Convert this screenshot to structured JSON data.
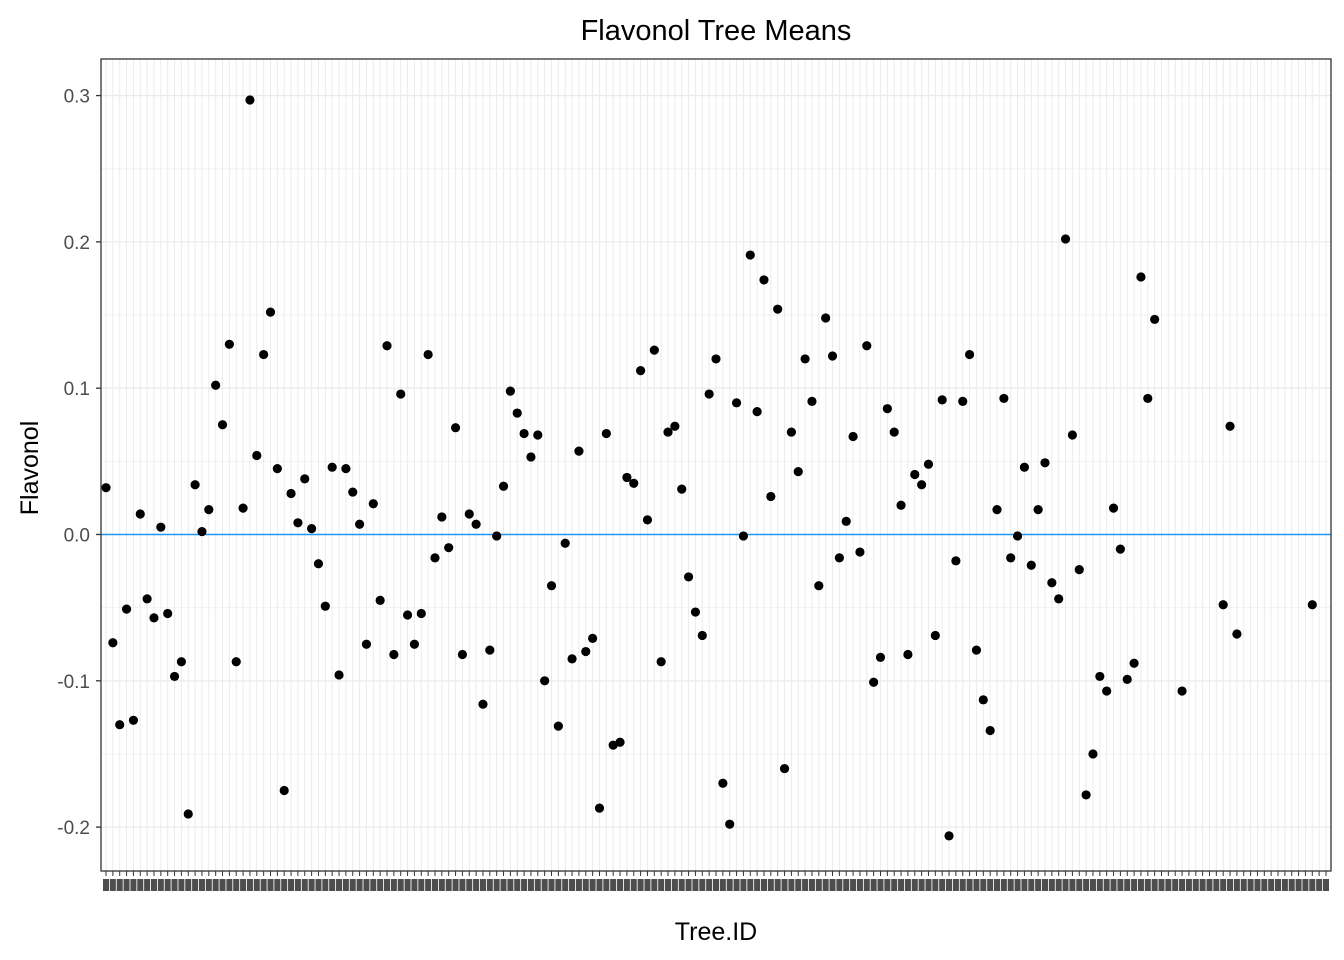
{
  "chart_data": {
    "type": "scatter",
    "title": "Flavonol Tree Means",
    "xlabel": "Tree.ID",
    "ylabel": "Flavonol",
    "x_axis": "categorical",
    "x_tick_count": 179,
    "ylim": [
      -0.23,
      0.325
    ],
    "y_ticks": [
      -0.2,
      -0.1,
      0.0,
      0.1,
      0.2,
      0.3
    ],
    "y_tick_labels": [
      "-0.2",
      "-0.1",
      "0.0",
      "0.1",
      "0.2",
      "0.3"
    ],
    "reference_line": {
      "y": 0,
      "color": "#2196F3"
    },
    "grid": true,
    "point_color": "#000000",
    "points": [
      [
        1,
        0.032
      ],
      [
        2,
        -0.074
      ],
      [
        3,
        -0.13
      ],
      [
        4,
        -0.051
      ],
      [
        5,
        -0.127
      ],
      [
        6,
        0.014
      ],
      [
        7,
        -0.044
      ],
      [
        8,
        -0.057
      ],
      [
        9,
        0.005
      ],
      [
        10,
        -0.054
      ],
      [
        11,
        -0.097
      ],
      [
        12,
        -0.087
      ],
      [
        13,
        -0.191
      ],
      [
        14,
        0.034
      ],
      [
        15,
        0.002
      ],
      [
        16,
        0.017
      ],
      [
        17,
        0.102
      ],
      [
        18,
        0.075
      ],
      [
        19,
        0.13
      ],
      [
        20,
        -0.087
      ],
      [
        21,
        0.018
      ],
      [
        22,
        0.297
      ],
      [
        23,
        0.054
      ],
      [
        24,
        0.123
      ],
      [
        25,
        0.152
      ],
      [
        26,
        0.045
      ],
      [
        27,
        -0.175
      ],
      [
        28,
        0.028
      ],
      [
        29,
        0.008
      ],
      [
        30,
        0.038
      ],
      [
        31,
        0.004
      ],
      [
        32,
        -0.02
      ],
      [
        33,
        -0.049
      ],
      [
        34,
        0.046
      ],
      [
        35,
        -0.096
      ],
      [
        36,
        0.045
      ],
      [
        37,
        0.029
      ],
      [
        38,
        0.007
      ],
      [
        39,
        -0.075
      ],
      [
        40,
        0.021
      ],
      [
        41,
        -0.045
      ],
      [
        42,
        0.129
      ],
      [
        43,
        -0.082
      ],
      [
        44,
        0.096
      ],
      [
        45,
        -0.055
      ],
      [
        46,
        -0.075
      ],
      [
        47,
        -0.054
      ],
      [
        48,
        0.123
      ],
      [
        49,
        -0.016
      ],
      [
        50,
        0.012
      ],
      [
        51,
        -0.009
      ],
      [
        52,
        0.073
      ],
      [
        53,
        -0.082
      ],
      [
        54,
        0.014
      ],
      [
        55,
        0.007
      ],
      [
        56,
        -0.116
      ],
      [
        57,
        -0.079
      ],
      [
        58,
        -0.001
      ],
      [
        59,
        0.033
      ],
      [
        60,
        0.098
      ],
      [
        61,
        0.083
      ],
      [
        62,
        0.069
      ],
      [
        63,
        0.053
      ],
      [
        64,
        0.068
      ],
      [
        65,
        -0.1
      ],
      [
        66,
        -0.035
      ],
      [
        67,
        -0.131
      ],
      [
        68,
        -0.006
      ],
      [
        69,
        -0.085
      ],
      [
        70,
        0.057
      ],
      [
        71,
        -0.08
      ],
      [
        72,
        -0.071
      ],
      [
        73,
        -0.187
      ],
      [
        74,
        0.069
      ],
      [
        75,
        -0.144
      ],
      [
        76,
        -0.142
      ],
      [
        77,
        0.039
      ],
      [
        78,
        0.035
      ],
      [
        79,
        0.112
      ],
      [
        80,
        0.01
      ],
      [
        81,
        0.126
      ],
      [
        82,
        -0.087
      ],
      [
        83,
        0.07
      ],
      [
        84,
        0.074
      ],
      [
        85,
        0.031
      ],
      [
        86,
        -0.029
      ],
      [
        87,
        -0.053
      ],
      [
        88,
        -0.069
      ],
      [
        89,
        0.096
      ],
      [
        90,
        0.12
      ],
      [
        91,
        -0.17
      ],
      [
        92,
        -0.198
      ],
      [
        93,
        0.09
      ],
      [
        94,
        -0.001
      ],
      [
        95,
        0.191
      ],
      [
        96,
        0.084
      ],
      [
        97,
        0.174
      ],
      [
        98,
        0.026
      ],
      [
        99,
        0.154
      ],
      [
        100,
        -0.16
      ],
      [
        101,
        0.07
      ],
      [
        102,
        0.043
      ],
      [
        103,
        0.12
      ],
      [
        104,
        0.091
      ],
      [
        105,
        -0.035
      ],
      [
        106,
        0.148
      ],
      [
        107,
        0.122
      ],
      [
        108,
        -0.016
      ],
      [
        109,
        0.009
      ],
      [
        110,
        0.067
      ],
      [
        111,
        -0.012
      ],
      [
        112,
        0.129
      ],
      [
        113,
        -0.101
      ],
      [
        114,
        -0.084
      ],
      [
        115,
        0.086
      ],
      [
        116,
        0.07
      ],
      [
        117,
        0.02
      ],
      [
        118,
        -0.082
      ],
      [
        119,
        0.041
      ],
      [
        120,
        0.034
      ],
      [
        121,
        0.048
      ],
      [
        122,
        -0.069
      ],
      [
        123,
        0.092
      ],
      [
        124,
        -0.206
      ],
      [
        125,
        -0.018
      ],
      [
        126,
        0.091
      ],
      [
        127,
        0.123
      ],
      [
        128,
        -0.079
      ],
      [
        129,
        -0.113
      ],
      [
        130,
        -0.134
      ],
      [
        131,
        0.017
      ],
      [
        132,
        0.093
      ],
      [
        133,
        -0.016
      ],
      [
        134,
        -0.001
      ],
      [
        135,
        0.046
      ],
      [
        136,
        -0.021
      ],
      [
        137,
        0.017
      ],
      [
        138,
        0.049
      ],
      [
        139,
        -0.033
      ],
      [
        140,
        -0.044
      ],
      [
        141,
        0.202
      ],
      [
        142,
        0.068
      ],
      [
        143,
        -0.024
      ],
      [
        144,
        -0.178
      ],
      [
        145,
        -0.15
      ],
      [
        146,
        -0.097
      ],
      [
        147,
        -0.107
      ],
      [
        148,
        0.018
      ],
      [
        149,
        -0.01
      ],
      [
        150,
        -0.099
      ],
      [
        151,
        -0.088
      ],
      [
        152,
        0.176
      ],
      [
        153,
        0.093
      ],
      [
        154,
        0.147
      ],
      [
        158,
        -0.107
      ],
      [
        164,
        -0.048
      ],
      [
        165,
        0.074
      ],
      [
        166,
        -0.068
      ],
      [
        177,
        -0.048
      ]
    ]
  }
}
